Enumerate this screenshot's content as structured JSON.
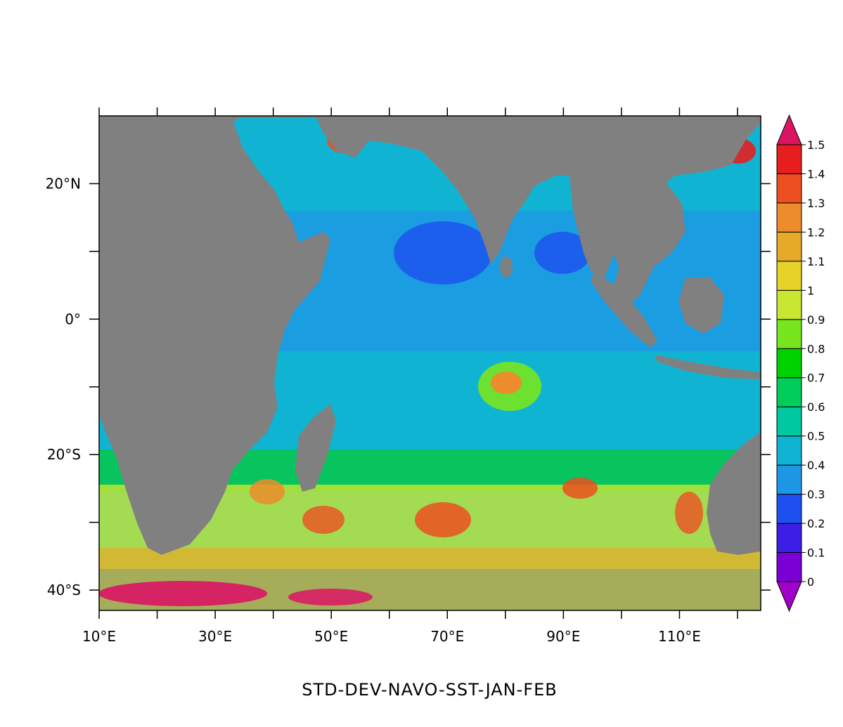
{
  "map": {
    "caption": "STD-DEV-NAVO-SST-JAN-FEB",
    "extent": {
      "lon": [
        10,
        124
      ],
      "lat": [
        -43,
        30
      ]
    },
    "x_axis": {
      "labeled_ticks": [
        {
          "value": 10,
          "label": "10°E"
        },
        {
          "value": 30,
          "label": "30°E"
        },
        {
          "value": 50,
          "label": "50°E"
        },
        {
          "value": 70,
          "label": "70°E"
        },
        {
          "value": 90,
          "label": "90°E"
        },
        {
          "value": 110,
          "label": "110°E"
        }
      ],
      "minor_ticks": [
        20,
        40,
        60,
        80,
        100,
        120
      ]
    },
    "y_axis": {
      "labeled_ticks": [
        {
          "value": 20,
          "label": "20°N"
        },
        {
          "value": 0,
          "label": "0°"
        },
        {
          "value": -20,
          "label": "20°S"
        },
        {
          "value": -40,
          "label": "40°S"
        }
      ],
      "minor_ticks": [
        10,
        -10,
        -30
      ]
    },
    "land_color": "#808080",
    "background_color": "#ffffff"
  },
  "colorbar": {
    "levels": [
      "0",
      "0.1",
      "0.2",
      "0.3",
      "0.4",
      "0.5",
      "0.6",
      "0.7",
      "0.8",
      "0.9",
      "1",
      "1.1",
      "1.2",
      "1.3",
      "1.4",
      "1.5"
    ],
    "colors": [
      "#7b00d4",
      "#3d1ee6",
      "#1e50f0",
      "#1e96e6",
      "#10b4d2",
      "#00c8a0",
      "#00cd5a",
      "#00d200",
      "#78e61e",
      "#c8e632",
      "#e6d228",
      "#e6aa28",
      "#ec8c2c",
      "#ec5020",
      "#e61e1e"
    ],
    "over_color": "#dc1464",
    "under_color": "#a000c8"
  }
}
